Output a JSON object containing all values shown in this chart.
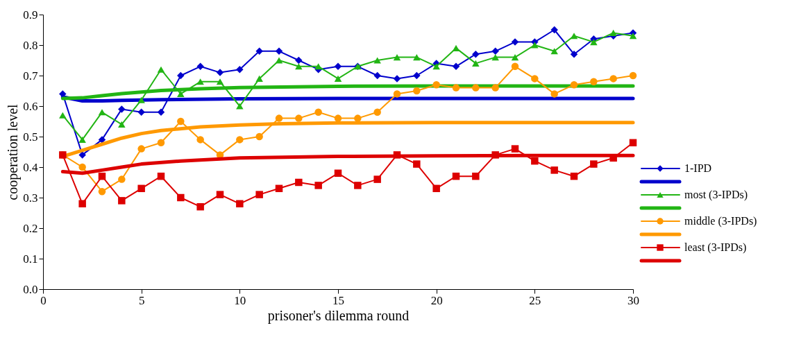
{
  "chart_data": {
    "type": "line",
    "xlabel": "prisoner's dilemma round",
    "ylabel": "cooperation level",
    "xlim": [
      0,
      30
    ],
    "xticks": [
      0,
      5,
      10,
      15,
      20,
      25,
      30
    ],
    "ylim": [
      0,
      0.9
    ],
    "yticks": [
      {
        "value": 0,
        "label": "0.0"
      },
      0.1,
      0.2,
      0.3,
      0.4,
      0.5,
      0.6,
      0.7,
      0.8,
      0.9
    ],
    "grid": false,
    "legend": "right",
    "x": [
      1,
      2,
      3,
      4,
      5,
      6,
      7,
      8,
      9,
      10,
      11,
      12,
      13,
      14,
      15,
      16,
      17,
      18,
      19,
      20,
      21,
      22,
      23,
      24,
      25,
      26,
      27,
      28,
      29,
      30
    ],
    "series": [
      {
        "name": "1-IPD",
        "color": "#0000cc",
        "marker": "diamond",
        "values": [
          0.64,
          0.44,
          0.49,
          0.59,
          0.58,
          0.58,
          0.7,
          0.73,
          0.71,
          0.72,
          0.78,
          0.78,
          0.75,
          0.72,
          0.73,
          0.73,
          0.7,
          0.69,
          0.7,
          0.74,
          0.73,
          0.77,
          0.78,
          0.81,
          0.81,
          0.85,
          0.77,
          0.82,
          0.83,
          0.84
        ]
      },
      {
        "color": "#0000cc",
        "marker": "none",
        "x": [
          1,
          2,
          3,
          4,
          6,
          10,
          15,
          20,
          25,
          30
        ],
        "values": [
          0.63,
          0.617,
          0.617,
          0.619,
          0.621,
          0.624,
          0.625,
          0.625,
          0.625,
          0.625
        ]
      },
      {
        "name": "most (3-IPDs)",
        "color": "#22b514",
        "marker": "triangle",
        "values": [
          0.57,
          0.49,
          0.58,
          0.54,
          0.62,
          0.72,
          0.64,
          0.68,
          0.68,
          0.6,
          0.69,
          0.75,
          0.73,
          0.73,
          0.69,
          0.73,
          0.75,
          0.76,
          0.76,
          0.73,
          0.79,
          0.74,
          0.76,
          0.76,
          0.8,
          0.78,
          0.83,
          0.81,
          0.84,
          0.83
        ]
      },
      {
        "color": "#22b514",
        "marker": "none",
        "x": [
          1,
          2,
          3,
          4,
          6,
          8,
          10,
          15,
          20,
          25,
          30
        ],
        "values": [
          0.625,
          0.627,
          0.634,
          0.641,
          0.651,
          0.657,
          0.661,
          0.665,
          0.666,
          0.666,
          0.666
        ]
      },
      {
        "name": "middle (3-IPDs)",
        "color": "#ff9900",
        "marker": "circle",
        "values": [
          0.44,
          0.4,
          0.32,
          0.36,
          0.46,
          0.48,
          0.55,
          0.49,
          0.44,
          0.49,
          0.5,
          0.56,
          0.56,
          0.58,
          0.56,
          0.56,
          0.58,
          0.64,
          0.65,
          0.67,
          0.66,
          0.66,
          0.66,
          0.73,
          0.69,
          0.64,
          0.67,
          0.68,
          0.69,
          0.7
        ]
      },
      {
        "color": "#ff9900",
        "marker": "none",
        "x": [
          1,
          2,
          3,
          4,
          5,
          6,
          8,
          10,
          12,
          15,
          20,
          25,
          30
        ],
        "values": [
          0.435,
          0.455,
          0.475,
          0.495,
          0.51,
          0.52,
          0.532,
          0.538,
          0.542,
          0.545,
          0.546,
          0.546,
          0.546
        ]
      },
      {
        "name": "least (3-IPDs)",
        "color": "#dd0000",
        "marker": "square",
        "values": [
          0.44,
          0.28,
          0.37,
          0.29,
          0.33,
          0.37,
          0.3,
          0.27,
          0.31,
          0.28,
          0.31,
          0.33,
          0.35,
          0.34,
          0.38,
          0.34,
          0.36,
          0.44,
          0.41,
          0.33,
          0.37,
          0.37,
          0.44,
          0.46,
          0.42,
          0.39,
          0.37,
          0.41,
          0.43,
          0.48
        ]
      },
      {
        "color": "#dd0000",
        "marker": "none",
        "x": [
          1,
          2,
          3,
          4,
          5,
          7,
          10,
          15,
          20,
          25,
          30
        ],
        "values": [
          0.385,
          0.38,
          0.39,
          0.4,
          0.41,
          0.42,
          0.43,
          0.435,
          0.437,
          0.438,
          0.438
        ]
      }
    ]
  }
}
